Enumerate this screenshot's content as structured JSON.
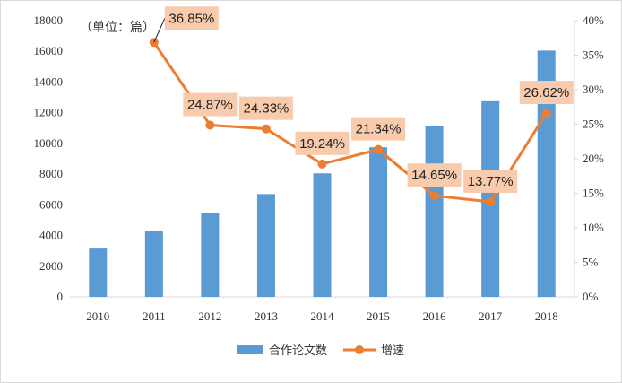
{
  "colors": {
    "bar": "#5b9bd5",
    "line": "#ed7d31",
    "label_bg": "#f8cbad",
    "axis": "#d9d9d9"
  },
  "unit_label": "（单位：篇）",
  "chart_data": {
    "type": "bar",
    "categories": [
      "2010",
      "2011",
      "2012",
      "2013",
      "2014",
      "2015",
      "2016",
      "2017",
      "2018"
    ],
    "series": [
      {
        "name": "合作论文数",
        "type": "bar",
        "axis": "left",
        "values": [
          3150,
          4300,
          5450,
          6700,
          8050,
          9750,
          11150,
          12750,
          16050
        ]
      },
      {
        "name": "增速",
        "type": "line",
        "axis": "right",
        "values": [
          null,
          36.85,
          24.87,
          24.33,
          19.24,
          21.34,
          14.65,
          13.77,
          26.62
        ],
        "labels": [
          "",
          "36.85%",
          "24.87%",
          "24.33%",
          "19.24%",
          "21.34%",
          "14.65%",
          "13.77%",
          "26.62%"
        ]
      }
    ],
    "y_left": {
      "range": [
        0,
        18000
      ],
      "ticks": [
        "0",
        "2000",
        "4000",
        "6000",
        "8000",
        "10000",
        "12000",
        "14000",
        "16000",
        "18000"
      ]
    },
    "y_right": {
      "range": [
        0,
        40
      ],
      "ticks": [
        "0%",
        "5%",
        "10%",
        "15%",
        "20%",
        "25%",
        "30%",
        "35%",
        "40%"
      ]
    },
    "grid": false,
    "legend": "bottom"
  }
}
